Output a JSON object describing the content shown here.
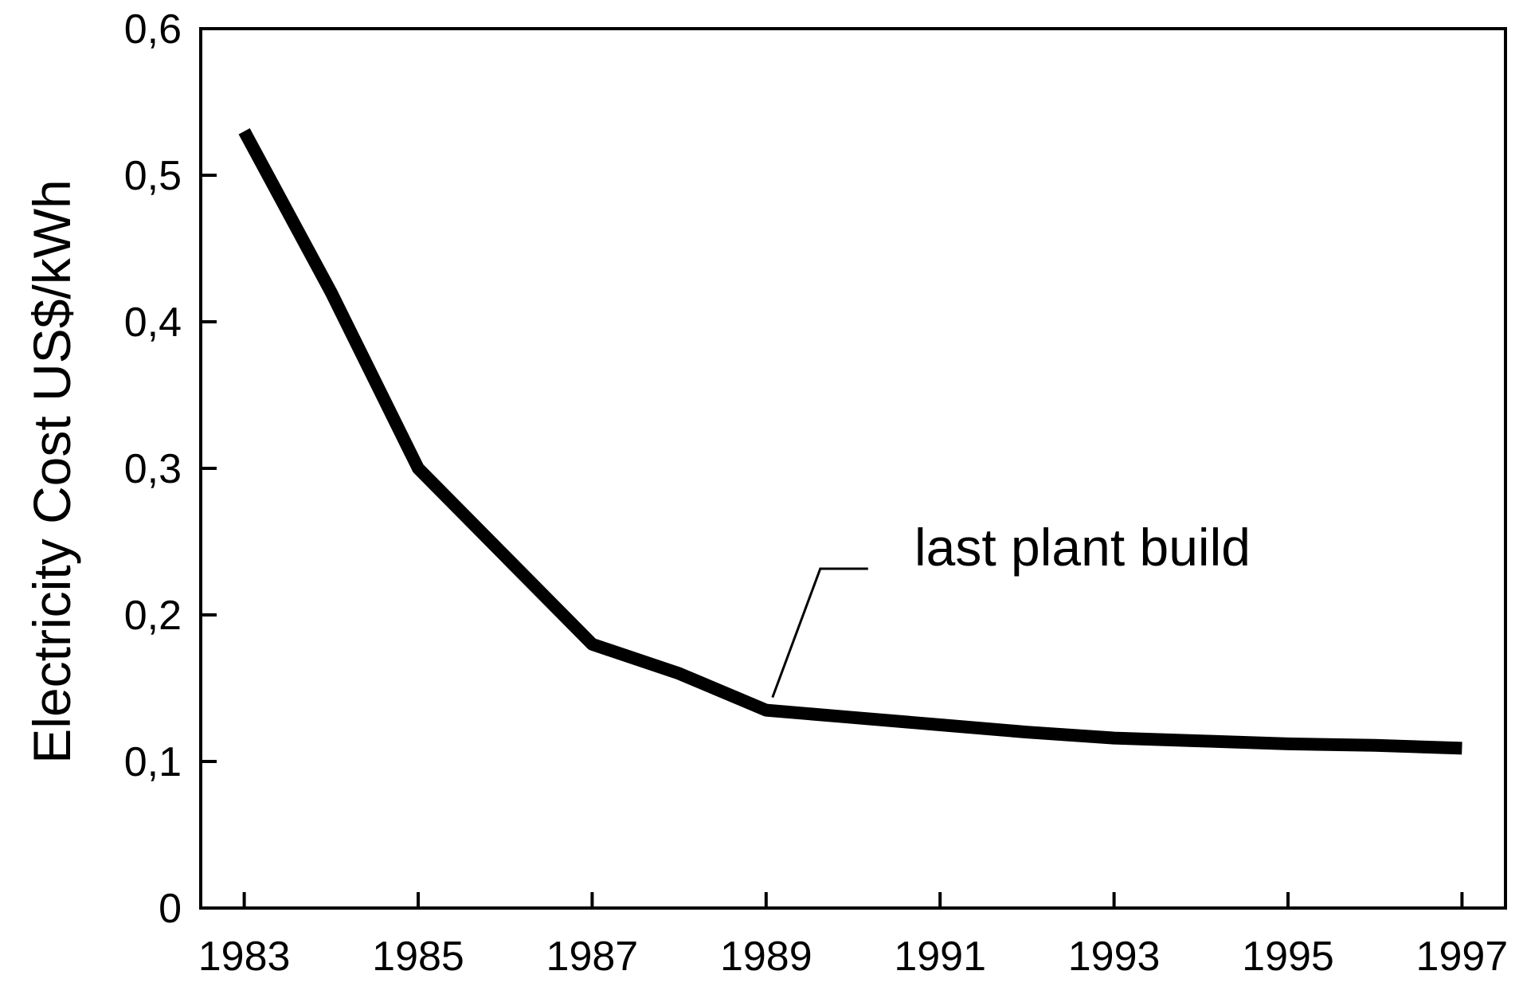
{
  "chart_data": {
    "type": "line",
    "title": "",
    "xlabel": "",
    "ylabel": "Electricity Cost  US$/kWh",
    "x": [
      1983,
      1984,
      1985,
      1986,
      1987,
      1988,
      1989,
      1990,
      1991,
      1992,
      1993,
      1994,
      1995,
      1996,
      1997
    ],
    "series": [
      {
        "values": [
          0.53,
          0.42,
          0.3,
          0.24,
          0.18,
          0.16,
          0.135,
          0.13,
          0.125,
          0.12,
          0.116,
          0.114,
          0.112,
          0.111,
          0.109
        ]
      }
    ],
    "xlim": [
      1982.5,
      1997.5
    ],
    "ylim": [
      0,
      0.6
    ],
    "x_ticks": [
      "1983",
      "1985",
      "1987",
      "1989",
      "1991",
      "1993",
      "1995",
      "1997"
    ],
    "y_ticks": [
      "0",
      "0,1",
      "0,2",
      "0,3",
      "0,4",
      "0,5",
      "0,6"
    ],
    "grid": false,
    "annotations": [
      {
        "text": "last plant build",
        "x": 1989,
        "y": 0.135
      }
    ],
    "colors": {
      "line": "#000000",
      "axes": "#000000",
      "background": "#ffffff"
    }
  }
}
